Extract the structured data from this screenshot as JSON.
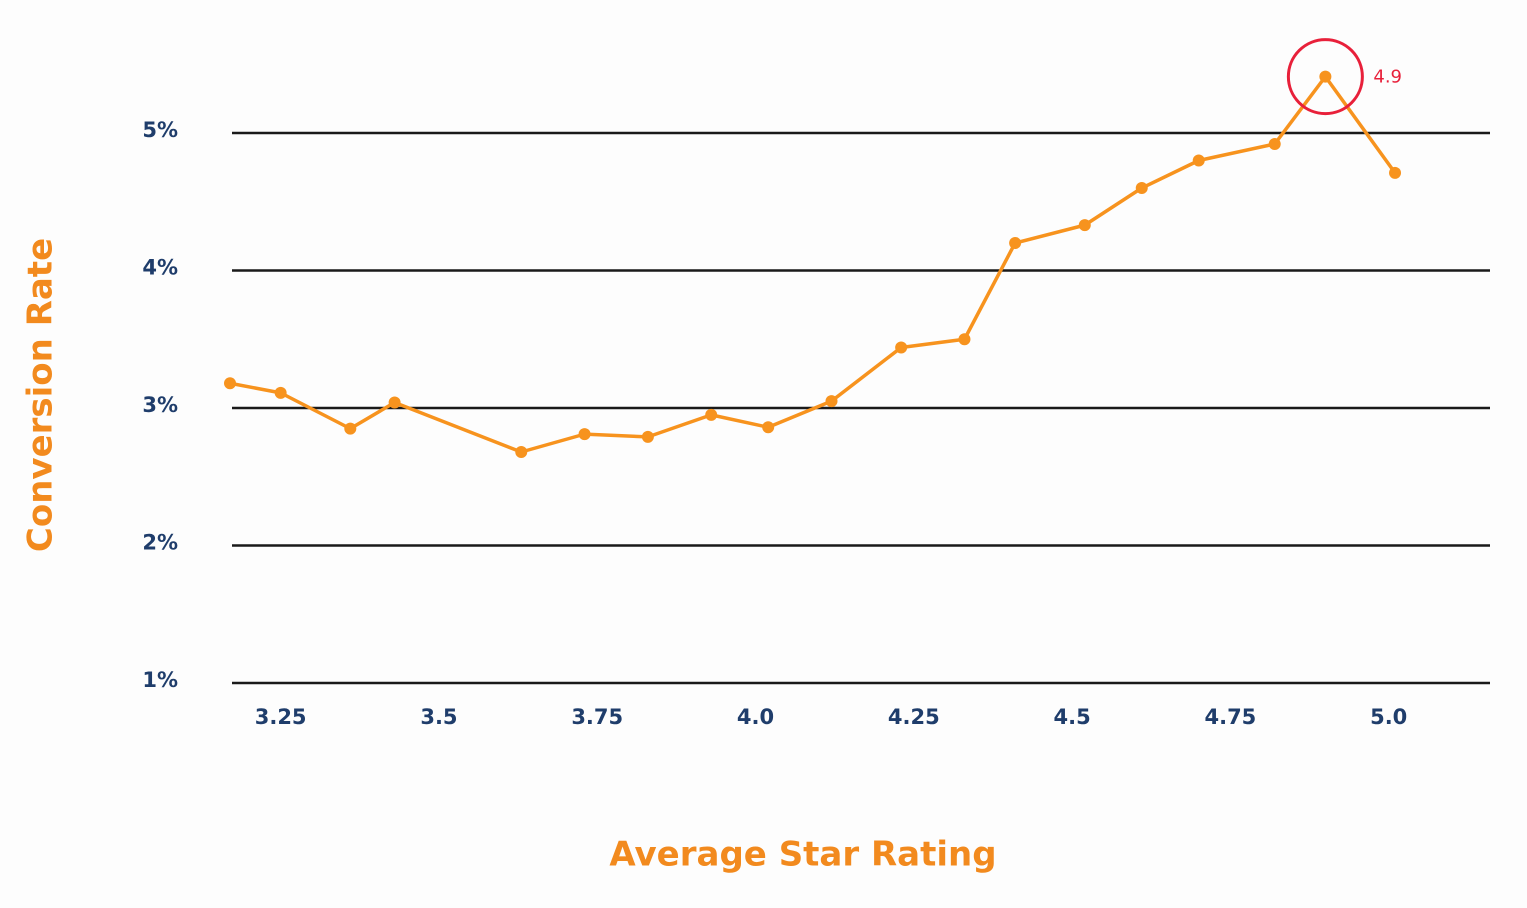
{
  "chart_data": {
    "type": "line",
    "x_label": "Average Star Rating",
    "y_label": "Conversion Rate",
    "x": [
      3.17,
      3.25,
      3.36,
      3.43,
      3.63,
      3.73,
      3.83,
      3.93,
      4.02,
      4.12,
      4.23,
      4.33,
      4.41,
      4.52,
      4.61,
      4.7,
      4.82,
      4.9,
      5.01
    ],
    "values": [
      3.18,
      3.11,
      2.85,
      3.04,
      2.68,
      2.81,
      2.79,
      2.95,
      2.86,
      3.05,
      3.44,
      3.5,
      4.2,
      4.33,
      4.6,
      4.8,
      4.92,
      5.41,
      4.71
    ],
    "color": "#f7931e",
    "xlim": [
      3.17,
      5.16
    ],
    "xticks": [
      3.25,
      3.5,
      3.75,
      {
        "value": 4,
        "label": "4.0"
      },
      4.25,
      4.5,
      4.75,
      {
        "value": 5,
        "label": "5.0"
      }
    ],
    "ylim": [
      1,
      5.6
    ],
    "yticks": [
      {
        "value": 1,
        "label": "1%"
      },
      {
        "value": 2,
        "label": "2%"
      },
      {
        "value": 3,
        "label": "3%"
      },
      {
        "value": 4,
        "label": "4%"
      },
      {
        "value": 5,
        "label": "5%"
      }
    ],
    "grid": true,
    "annotation": {
      "text": "4.9",
      "x": 4.9,
      "color": "#e8203a"
    }
  }
}
